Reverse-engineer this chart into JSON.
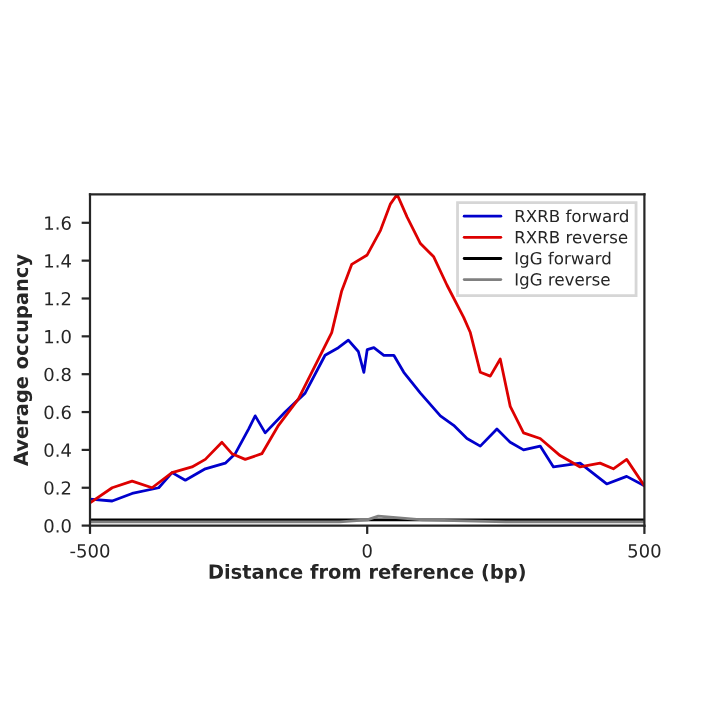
{
  "chart_data": {
    "type": "line",
    "xlabel": "Distance from reference (bp)",
    "ylabel": "Average occupancy",
    "xlim": [
      -500,
      500
    ],
    "xticks": [
      -500,
      0,
      500
    ],
    "ylim": [
      0,
      1.75
    ],
    "yticks": [
      {
        "value": 0,
        "label": "0.0"
      },
      {
        "value": 0.2,
        "label": "0.2"
      },
      {
        "value": 0.4,
        "label": "0.4"
      },
      {
        "value": 0.6,
        "label": "0.6"
      },
      {
        "value": 0.8,
        "label": "0.8"
      },
      {
        "value": 1.0,
        "label": "1.0"
      },
      {
        "value": 1.2,
        "label": "1.2"
      },
      {
        "value": 1.4,
        "label": "1.4"
      },
      {
        "value": 1.6,
        "label": "1.6"
      }
    ],
    "grid": false,
    "legend": "top right",
    "marker": "none",
    "line_style": "solid",
    "series": [
      {
        "name": "RXRB forward",
        "color": "#0000cc",
        "x": [
          -500,
          -460,
          -424,
          -376,
          -352,
          -328,
          -292,
          -256,
          -238,
          -214,
          -202,
          -184,
          -148,
          -112,
          -76,
          -52,
          -34,
          -16,
          -6,
          0,
          12,
          30,
          48,
          66,
          96,
          132,
          156,
          180,
          204,
          234,
          258,
          282,
          312,
          336,
          384,
          432,
          468,
          500
        ],
        "values": [
          0.14,
          0.13,
          0.17,
          0.2,
          0.28,
          0.24,
          0.3,
          0.33,
          0.38,
          0.51,
          0.58,
          0.49,
          0.6,
          0.7,
          0.9,
          0.94,
          0.98,
          0.92,
          0.81,
          0.93,
          0.94,
          0.9,
          0.9,
          0.81,
          0.7,
          0.58,
          0.53,
          0.46,
          0.42,
          0.51,
          0.44,
          0.4,
          0.42,
          0.31,
          0.33,
          0.22,
          0.26,
          0.21
        ]
      },
      {
        "name": "RXRB reverse",
        "color": "#dd0000",
        "x": [
          -500,
          -460,
          -424,
          -388,
          -352,
          -316,
          -292,
          -262,
          -244,
          -220,
          -190,
          -160,
          -124,
          -88,
          -64,
          -46,
          -28,
          0,
          24,
          42,
          54,
          72,
          96,
          120,
          144,
          174,
          186,
          204,
          222,
          240,
          258,
          282,
          312,
          348,
          384,
          420,
          444,
          468,
          500
        ],
        "values": [
          0.12,
          0.2,
          0.235,
          0.2,
          0.28,
          0.31,
          0.35,
          0.44,
          0.38,
          0.35,
          0.38,
          0.53,
          0.67,
          0.88,
          1.02,
          1.24,
          1.38,
          1.43,
          1.56,
          1.7,
          1.75,
          1.63,
          1.49,
          1.42,
          1.27,
          1.1,
          1.02,
          0.81,
          0.79,
          0.88,
          0.63,
          0.49,
          0.46,
          0.37,
          0.31,
          0.33,
          0.3,
          0.35,
          0.21
        ]
      },
      {
        "name": "IgG forward",
        "color": "#000000",
        "x": [
          -500,
          -250,
          0,
          250,
          500
        ],
        "values": [
          0.03,
          0.03,
          0.03,
          0.03,
          0.03
        ]
      },
      {
        "name": "IgG reverse",
        "color": "#808080",
        "x": [
          -500,
          -250,
          -50,
          0,
          20,
          100,
          250,
          500
        ],
        "values": [
          0.02,
          0.02,
          0.02,
          0.03,
          0.05,
          0.03,
          0.02,
          0.02
        ]
      }
    ]
  }
}
